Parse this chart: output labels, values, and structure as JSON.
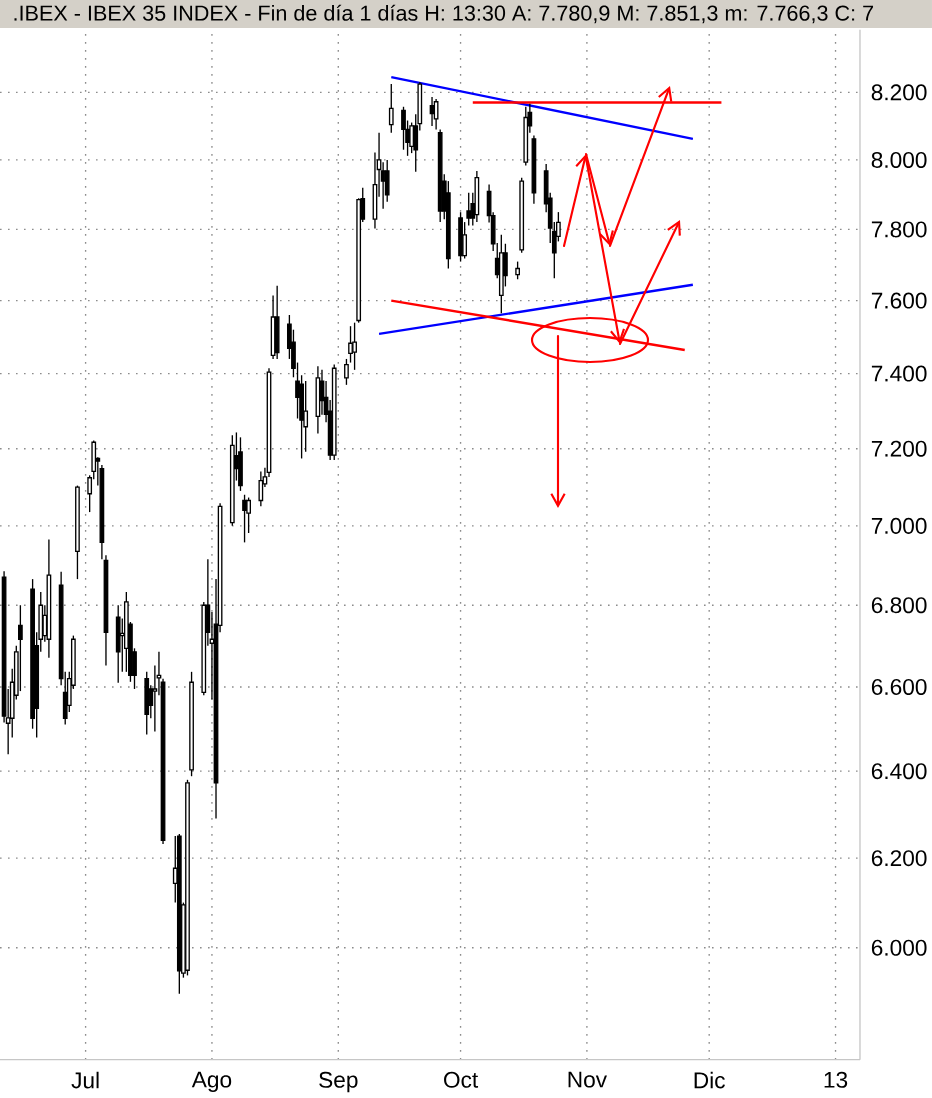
{
  "chart_data": {
    "type": "candlestick",
    "title": ".IBEX - IBEX 35 INDEX - Fin de día 1 días H: 13:30 A: 7.780,9 M: 7.851,3 m: 7.766,3 C: 7",
    "x": [
      "2012-06-11",
      "2012-06-12",
      "2012-06-13",
      "2012-06-14",
      "2012-06-15",
      "2012-06-18",
      "2012-06-19",
      "2012-06-20",
      "2012-06-21",
      "2012-06-22",
      "2012-06-25",
      "2012-06-26",
      "2012-06-27",
      "2012-06-28",
      "2012-06-29",
      "2012-07-02",
      "2012-07-03",
      "2012-07-04",
      "2012-07-05",
      "2012-07-06",
      "2012-07-09",
      "2012-07-10",
      "2012-07-11",
      "2012-07-12",
      "2012-07-13",
      "2012-07-16",
      "2012-07-17",
      "2012-07-18",
      "2012-07-19",
      "2012-07-20",
      "2012-07-23",
      "2012-07-24",
      "2012-07-25",
      "2012-07-26",
      "2012-07-27",
      "2012-07-30",
      "2012-07-31",
      "2012-08-01",
      "2012-08-02",
      "2012-08-03",
      "2012-08-06",
      "2012-08-07",
      "2012-08-08",
      "2012-08-09",
      "2012-08-10",
      "2012-08-13",
      "2012-08-14",
      "2012-08-15",
      "2012-08-16",
      "2012-08-17",
      "2012-08-20",
      "2012-08-21",
      "2012-08-22",
      "2012-08-23",
      "2012-08-24",
      "2012-08-27",
      "2012-08-28",
      "2012-08-29",
      "2012-08-30",
      "2012-08-31",
      "2012-09-03",
      "2012-09-04",
      "2012-09-05",
      "2012-09-06",
      "2012-09-07",
      "2012-09-10",
      "2012-09-11",
      "2012-09-12",
      "2012-09-13",
      "2012-09-14",
      "2012-09-17",
      "2012-09-18",
      "2012-09-19",
      "2012-09-20",
      "2012-09-21",
      "2012-09-24",
      "2012-09-25",
      "2012-09-26",
      "2012-09-27",
      "2012-09-28",
      "2012-10-01",
      "2012-10-02",
      "2012-10-03",
      "2012-10-04",
      "2012-10-05",
      "2012-10-08",
      "2012-10-09",
      "2012-10-10",
      "2012-10-11",
      "2012-10-12",
      "2012-10-15",
      "2012-10-16",
      "2012-10-17",
      "2012-10-18",
      "2012-10-19",
      "2012-10-22",
      "2012-10-23",
      "2012-10-24",
      "2012-10-25"
    ],
    "ohlc": [
      [
        6870,
        6885,
        6515,
        6530
      ],
      [
        6513,
        6595,
        6440,
        6526
      ],
      [
        6525,
        6644,
        6479,
        6611
      ],
      [
        6580,
        6700,
        6570,
        6685
      ],
      [
        6750,
        6800,
        6590,
        6716
      ],
      [
        6840,
        6865,
        6500,
        6525
      ],
      [
        6700,
        6733,
        6479,
        6548
      ],
      [
        6716,
        6833,
        6685,
        6800
      ],
      [
        6725,
        6800,
        6710,
        6775
      ],
      [
        6716,
        6965,
        6670,
        6875
      ],
      [
        6850,
        6883,
        6604,
        6620
      ],
      [
        6587,
        6636,
        6510,
        6525
      ],
      [
        6556,
        6636,
        6540,
        6620
      ],
      [
        6604,
        6725,
        6595,
        6716
      ],
      [
        6935,
        7104,
        6865,
        7100
      ],
      [
        7083,
        7130,
        7035,
        7124
      ],
      [
        7140,
        7222,
        7120,
        7217
      ],
      [
        7174,
        7178,
        7104,
        7167
      ],
      [
        7148,
        7157,
        6915,
        6958
      ],
      [
        6912,
        6925,
        6652,
        6733
      ],
      [
        6770,
        6800,
        6610,
        6685
      ],
      [
        6725,
        6767,
        6636,
        6730
      ],
      [
        6694,
        6833,
        6636,
        6808
      ],
      [
        6753,
        6758,
        6612,
        6628
      ],
      [
        6685,
        6694,
        6595,
        6628
      ],
      [
        6620,
        6636,
        6486,
        6534
      ],
      [
        6595,
        6604,
        6525,
        6556
      ],
      [
        6590,
        6652,
        6493,
        6595
      ],
      [
        6622,
        6685,
        6580,
        6628
      ],
      [
        6611,
        6620,
        6232,
        6240
      ],
      [
        6143,
        6250,
        6100,
        6177
      ],
      [
        6250,
        6255,
        5900,
        5950
      ],
      [
        5945,
        6100,
        5935,
        6095
      ],
      [
        5951,
        6380,
        5940,
        6373
      ],
      [
        6403,
        6636,
        6388,
        6611
      ],
      [
        6587,
        6808,
        6580,
        6800
      ],
      [
        6800,
        6915,
        6700,
        6733
      ],
      [
        6706,
        6783,
        6570,
        6716
      ],
      [
        6753,
        6865,
        6290,
        6373
      ],
      [
        6750,
        7058,
        6733,
        7050
      ],
      [
        7008,
        7235,
        7000,
        7209
      ],
      [
        7182,
        7243,
        7117,
        7148
      ],
      [
        7191,
        7230,
        7090,
        7104
      ],
      [
        7065,
        7080,
        6958,
        7040
      ],
      [
        7033,
        7073,
        6982,
        7065
      ],
      [
        7065,
        7140,
        7050,
        7117
      ],
      [
        7108,
        7150,
        7100,
        7126
      ],
      [
        7138,
        7415,
        7126,
        7404
      ],
      [
        7450,
        7614,
        7440,
        7555
      ],
      [
        7555,
        7641,
        7440,
        7457
      ],
      [
        7535,
        7560,
        7440,
        7469
      ],
      [
        7486,
        7520,
        7390,
        7415
      ],
      [
        7380,
        7430,
        7280,
        7337
      ],
      [
        7372,
        7396,
        7174,
        7275
      ],
      [
        7258,
        7380,
        7192,
        7300
      ],
      [
        7285,
        7420,
        7240,
        7389
      ],
      [
        7380,
        7410,
        7290,
        7328
      ],
      [
        7337,
        7380,
        7270,
        7291
      ],
      [
        7300,
        7330,
        7170,
        7183
      ],
      [
        7183,
        7425,
        7170,
        7415
      ],
      [
        7389,
        7440,
        7370,
        7425
      ],
      [
        7455,
        7530,
        7430,
        7483
      ],
      [
        7459,
        7540,
        7410,
        7486
      ],
      [
        7545,
        7890,
        7540,
        7886
      ],
      [
        7888,
        7920,
        7822,
        7830
      ],
      [
        7830,
        8022,
        7803,
        7930
      ],
      [
        7974,
        8080,
        7895,
        8000
      ],
      [
        7970,
        7995,
        7860,
        7940
      ],
      [
        7970,
        8000,
        7880,
        7900
      ],
      [
        8104,
        8225,
        8080,
        8152
      ],
      [
        8146,
        8157,
        8030,
        8090
      ],
      [
        8090,
        8116,
        8012,
        8052
      ],
      [
        8040,
        8110,
        8020,
        8100
      ],
      [
        8100,
        8135,
        7967,
        8030
      ],
      [
        8107,
        8230,
        8087,
        8225
      ],
      [
        8160,
        8186,
        8100,
        8137
      ],
      [
        8121,
        8180,
        8090,
        8172
      ],
      [
        8080,
        8090,
        7822,
        7853
      ],
      [
        7940,
        7960,
        7830,
        7853
      ],
      [
        7905,
        7940,
        7690,
        7718
      ],
      [
        7833,
        7850,
        7710,
        7727
      ],
      [
        7727,
        7822,
        7718,
        7785
      ],
      [
        7853,
        7905,
        7812,
        7833
      ],
      [
        7875,
        7905,
        7812,
        7833
      ],
      [
        7843,
        7970,
        7822,
        7950
      ],
      [
        7910,
        7930,
        7820,
        7840
      ],
      [
        7840,
        7850,
        7740,
        7760
      ],
      [
        7718,
        7762,
        7663,
        7673
      ],
      [
        7614,
        7785,
        7565,
        7734
      ],
      [
        7734,
        7760,
        7640,
        7670
      ],
      [
        7673,
        7710,
        7660,
        7690
      ],
      [
        7743,
        7950,
        7734,
        7940
      ],
      [
        7995,
        8157,
        7985,
        8125
      ],
      [
        8140,
        8166,
        8080,
        8100
      ],
      [
        8062,
        8072,
        7875,
        7905
      ],
      [
        7970,
        7990,
        7850,
        7875
      ],
      [
        7890,
        7905,
        7762,
        7805
      ],
      [
        7795,
        7822,
        7663,
        7734
      ],
      [
        7781,
        7851,
        7766,
        7820
      ]
    ],
    "series": [
      {
        "type": "line",
        "x": [
          "2012-09-14",
          "2012-11-27"
        ],
        "values": [
          8246,
          8062
        ],
        "color": "#0000ff"
      },
      {
        "type": "line",
        "x": [
          "2012-09-11",
          "2012-11-27"
        ],
        "values": [
          7508,
          7645
        ],
        "color": "#0000ff"
      },
      {
        "type": "line",
        "x": [
          "2012-09-14",
          "2012-11-25"
        ],
        "values": [
          7601,
          7464
        ],
        "color": "#ff0000"
      },
      {
        "type": "line",
        "x": [
          "2012-10-04",
          "2012-12-04"
        ],
        "values": [
          8170,
          8170
        ],
        "color": "#ff0000"
      }
    ],
    "xlim": [
      "2012-06-10",
      "2013-01-07"
    ],
    "xticks": [
      {
        "value": "2012-07-01",
        "label": "Jul"
      },
      {
        "value": "2012-08-01",
        "label": "Ago"
      },
      {
        "value": "2012-09-01",
        "label": "Sep"
      },
      {
        "value": "2012-10-01",
        "label": "Oct"
      },
      {
        "value": "2012-11-01",
        "label": "Nov"
      },
      {
        "value": "2012-12-01",
        "label": "Dic"
      },
      {
        "value": "2013-01-01",
        "label": "13"
      }
    ],
    "ylim": [
      5760,
      8390
    ],
    "yticks": [
      {
        "value": 6000,
        "label": "6.000"
      },
      {
        "value": 6200,
        "label": "6.200"
      },
      {
        "value": 6400,
        "label": "6.400"
      },
      {
        "value": 6600,
        "label": "6.600"
      },
      {
        "value": 6800,
        "label": "6.800"
      },
      {
        "value": 7000,
        "label": "7.000"
      },
      {
        "value": 7200,
        "label": "7.200"
      },
      {
        "value": 7400,
        "label": "7.400"
      },
      {
        "value": 7600,
        "label": "7.600"
      },
      {
        "value": 7800,
        "label": "7.800"
      },
      {
        "value": 8000,
        "label": "8.000"
      },
      {
        "value": 8200,
        "label": "8.200"
      }
    ],
    "log": "y",
    "grid": true
  }
}
